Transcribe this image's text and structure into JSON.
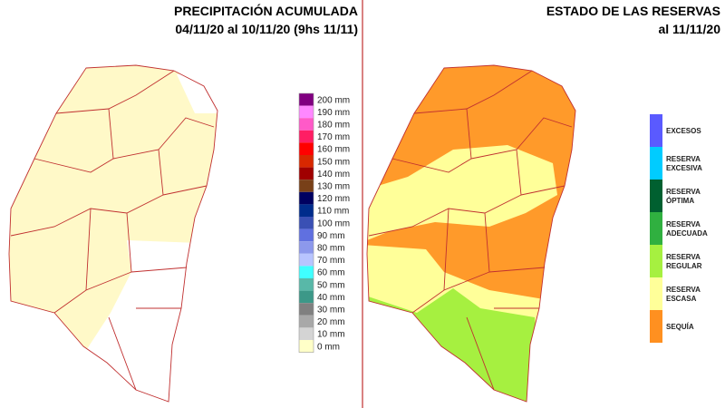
{
  "left_panel": {
    "title": "PRECIPITACIÓN ACUMULADA",
    "subtitle": "04/11/20 al 10/11/20 (9hs 11/11)",
    "legend": [
      {
        "label": "200 mm",
        "color": "#800080"
      },
      {
        "label": "190 mm",
        "color": "#ff88ff"
      },
      {
        "label": "180 mm",
        "color": "#ff5ac8"
      },
      {
        "label": "170 mm",
        "color": "#ff1e64"
      },
      {
        "label": "160 mm",
        "color": "#ff0000"
      },
      {
        "label": "150 mm",
        "color": "#d82800"
      },
      {
        "label": "140 mm",
        "color": "#a00000"
      },
      {
        "label": "130 mm",
        "color": "#784018"
      },
      {
        "label": "120 mm",
        "color": "#000060"
      },
      {
        "label": "110 mm",
        "color": "#002c8c"
      },
      {
        "label": "100 mm",
        "color": "#3a50b4"
      },
      {
        "label": "90 mm",
        "color": "#6070e0"
      },
      {
        "label": "80 mm",
        "color": "#8c98ec"
      },
      {
        "label": "70 mm",
        "color": "#b8c4ff"
      },
      {
        "label": "60 mm",
        "color": "#40ffff"
      },
      {
        "label": "50 mm",
        "color": "#58b8a8"
      },
      {
        "label": "40 mm",
        "color": "#3c9888"
      },
      {
        "label": "30 mm",
        "color": "#808080"
      },
      {
        "label": "20 mm",
        "color": "#a8a8a8"
      },
      {
        "label": "10 mm",
        "color": "#d4d4d4"
      },
      {
        "label": "0 mm",
        "color": "#ffffc8"
      }
    ]
  },
  "right_panel": {
    "title": "ESTADO DE LAS RESERVAS",
    "subtitle": "al 11/11/20",
    "legend": [
      {
        "lines": [
          "EXCESOS"
        ],
        "color": "#5a5aff"
      },
      {
        "lines": [
          "RESERVA",
          "EXCESIVA"
        ],
        "color": "#00ccff"
      },
      {
        "lines": [
          "RESERVA",
          "ÓPTIMA"
        ],
        "color": "#006030"
      },
      {
        "lines": [
          "RESERVA",
          "ADECUADA"
        ],
        "color": "#30b040"
      },
      {
        "lines": [
          "RESERVA",
          "REGULAR"
        ],
        "color": "#a6f040"
      },
      {
        "lines": [
          "RESERVA",
          "ESCASA"
        ],
        "color": "#ffff99"
      },
      {
        "lines": [
          "SEQUÍA"
        ],
        "color": "#ff9020"
      }
    ]
  }
}
